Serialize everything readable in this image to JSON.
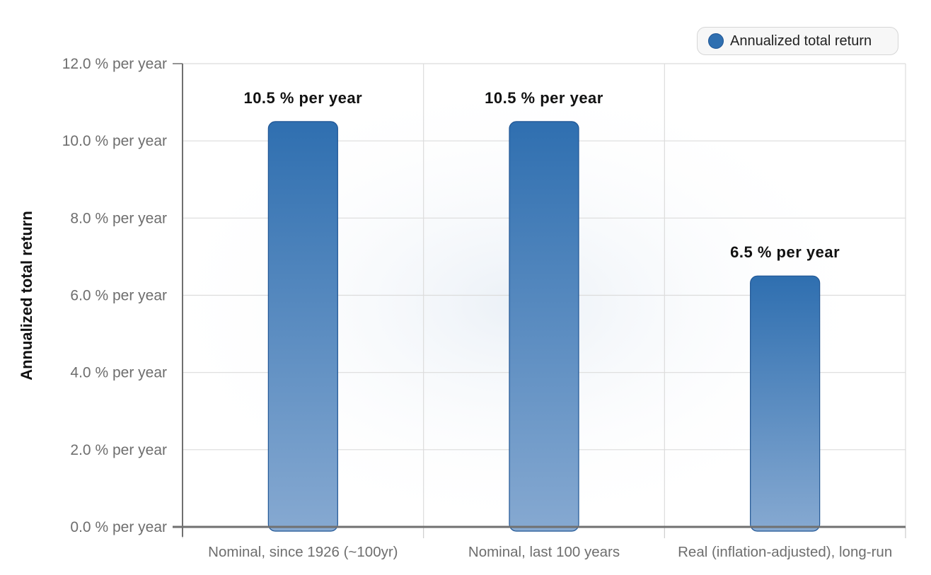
{
  "chart_data": {
    "type": "bar",
    "categories": [
      "Nominal, since 1926 (~100yr)",
      "Nominal, last 100 years",
      "Real (inflation-adjusted), long-run"
    ],
    "series": [
      {
        "name": "Annualized total return",
        "values": [
          10.5,
          10.5,
          6.5
        ]
      }
    ],
    "data_labels": [
      "10.5 % per year",
      "10.5 % per year",
      "6.5 % per year"
    ],
    "ylabel": "Annualized total return",
    "xlabel": "",
    "ylim": [
      0,
      12
    ],
    "yticks": [
      0,
      2,
      4,
      6,
      8,
      10,
      12
    ],
    "ytick_labels": [
      "0.0 % per year",
      "2.0 % per year",
      "4.0 % per year",
      "6.0 % per year",
      "8.0 % per year",
      "10.0 % per year",
      "12.0 % per year"
    ],
    "grid": true,
    "legend_position": "top-right",
    "colors": {
      "bar_top": "#2f6fb0",
      "bar_bottom": "#86a9d1",
      "bar_stroke": "#1f5594"
    }
  }
}
